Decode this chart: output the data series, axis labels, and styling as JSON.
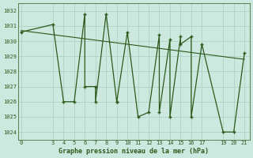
{
  "xlabel": "Graphe pression niveau de la mer (hPa)",
  "background_color": "#cde8df",
  "line_color": "#2d5a1b",
  "grid_color": "#b0d8c8",
  "x_data": [
    0,
    3,
    4,
    5,
    6,
    6,
    7,
    7,
    8,
    9,
    9,
    10,
    11,
    12,
    13,
    13,
    14,
    14,
    15,
    15,
    16,
    16,
    17,
    19,
    20,
    21
  ],
  "y_data": [
    1030.6,
    1031.1,
    1026.0,
    1026.0,
    1031.8,
    1027.0,
    1027.0,
    1026.0,
    1031.8,
    1026.0,
    1026.0,
    1030.6,
    1025.0,
    1025.3,
    1030.4,
    1025.3,
    1030.1,
    1025.0,
    1030.3,
    1029.8,
    1030.3,
    1025.0,
    1029.8,
    1024.0,
    1024.0,
    1029.2
  ],
  "trend_x": [
    0,
    21
  ],
  "trend_y": [
    1030.7,
    1028.8
  ],
  "x_ticks": [
    0,
    3,
    4,
    5,
    6,
    7,
    8,
    9,
    10,
    11,
    12,
    13,
    14,
    15,
    16,
    17,
    19,
    20,
    21
  ],
  "ylim": [
    1023.5,
    1032.5
  ],
  "xlim": [
    -0.3,
    21.5
  ],
  "y_ticks": [
    1024,
    1025,
    1026,
    1027,
    1028,
    1029,
    1030,
    1031,
    1032
  ],
  "figsize": [
    3.2,
    2.0
  ],
  "dpi": 100
}
